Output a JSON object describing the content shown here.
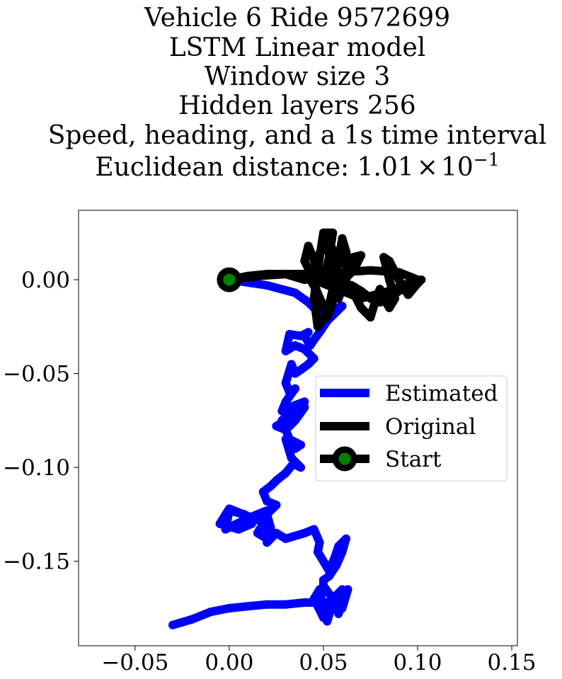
{
  "chart_data": {
    "type": "line",
    "title_lines": [
      "Vehicle 6 Ride 9572699",
      "LSTM Linear model",
      "Window size 3",
      "Hidden layers 256",
      "Speed, heading, and a 1s time interval"
    ],
    "distance_prefix": "Euclidean distance: ",
    "distance_mantissa": "1.01",
    "distance_times": "×",
    "distance_base": "10",
    "distance_exponent": "−1",
    "xlim": [
      -0.08,
      0.153
    ],
    "ylim": [
      -0.195,
      0.037
    ],
    "x_ticks": [
      {
        "value": -0.05,
        "label": "−0.05"
      },
      {
        "value": 0.0,
        "label": "0.00"
      },
      {
        "value": 0.05,
        "label": "0.05"
      },
      {
        "value": 0.1,
        "label": "0.10"
      },
      {
        "value": 0.15,
        "label": "0.15"
      }
    ],
    "y_ticks": [
      {
        "value": 0.0,
        "label": "0.00"
      },
      {
        "value": -0.05,
        "label": "−0.05"
      },
      {
        "value": -0.1,
        "label": "−0.10"
      },
      {
        "value": -0.15,
        "label": "−0.15"
      }
    ],
    "grid": false,
    "legend_position": "center-right",
    "series": [
      {
        "name": "Estimated",
        "color": "#0000ff",
        "x": [
          0.0,
          0.02,
          0.035,
          0.042,
          0.045,
          0.05,
          0.055,
          0.06,
          0.052,
          0.048,
          0.045,
          0.043,
          0.04,
          0.042,
          0.038,
          0.032,
          0.03,
          0.035,
          0.04,
          0.045,
          0.042,
          0.038,
          0.035,
          0.033,
          0.03,
          0.032,
          0.035,
          0.03,
          0.028,
          0.032,
          0.04,
          0.035,
          0.03,
          0.025,
          0.03,
          0.032,
          0.028,
          0.033,
          0.04,
          0.035,
          0.03,
          0.032,
          0.038,
          0.035,
          0.03,
          0.033,
          0.038,
          0.034,
          0.03,
          0.025,
          0.022,
          0.018,
          0.02,
          0.025,
          0.022,
          0.02,
          0.015,
          0.0,
          -0.005,
          0.005,
          0.012,
          0.008,
          0.0,
          -0.002,
          0.008,
          0.015,
          0.02,
          0.018,
          0.015,
          0.02,
          0.022,
          0.02,
          0.018,
          0.022,
          0.02,
          0.025,
          0.03,
          0.04,
          0.045,
          0.048,
          0.047,
          0.05,
          0.053,
          0.056,
          0.058,
          0.062,
          0.06,
          0.057,
          0.053,
          0.05,
          0.05,
          0.055,
          0.06,
          0.062,
          0.058,
          0.053,
          0.05,
          0.045,
          0.048,
          0.05,
          0.053,
          0.052,
          0.055,
          0.058,
          0.06,
          0.063,
          0.062,
          0.058,
          0.056,
          0.055,
          0.058,
          0.05,
          0.04,
          0.03,
          0.02,
          0.01,
          0.0,
          -0.01,
          -0.02,
          -0.03
        ],
        "y": [
          0.0,
          -0.003,
          -0.007,
          -0.012,
          -0.015,
          -0.018,
          -0.016,
          -0.014,
          -0.022,
          -0.028,
          -0.032,
          -0.035,
          -0.03,
          -0.028,
          -0.03,
          -0.029,
          -0.038,
          -0.035,
          -0.037,
          -0.042,
          -0.045,
          -0.048,
          -0.05,
          -0.045,
          -0.055,
          -0.06,
          -0.058,
          -0.065,
          -0.07,
          -0.068,
          -0.065,
          -0.072,
          -0.075,
          -0.078,
          -0.08,
          -0.085,
          -0.075,
          -0.07,
          -0.068,
          -0.075,
          -0.08,
          -0.085,
          -0.088,
          -0.09,
          -0.085,
          -0.095,
          -0.1,
          -0.098,
          -0.103,
          -0.107,
          -0.11,
          -0.113,
          -0.118,
          -0.12,
          -0.123,
          -0.125,
          -0.128,
          -0.122,
          -0.13,
          -0.133,
          -0.13,
          -0.125,
          -0.123,
          -0.133,
          -0.128,
          -0.125,
          -0.123,
          -0.13,
          -0.135,
          -0.138,
          -0.132,
          -0.125,
          -0.13,
          -0.135,
          -0.14,
          -0.135,
          -0.138,
          -0.135,
          -0.133,
          -0.14,
          -0.145,
          -0.15,
          -0.155,
          -0.148,
          -0.142,
          -0.138,
          -0.145,
          -0.152,
          -0.158,
          -0.16,
          -0.163,
          -0.17,
          -0.165,
          -0.168,
          -0.172,
          -0.175,
          -0.18,
          -0.17,
          -0.165,
          -0.175,
          -0.178,
          -0.182,
          -0.172,
          -0.168,
          -0.175,
          -0.165,
          -0.168,
          -0.178,
          -0.172,
          -0.17,
          -0.172,
          -0.172,
          -0.172,
          -0.173,
          -0.173,
          -0.174,
          -0.175,
          -0.177,
          -0.181,
          -0.184
        ]
      },
      {
        "name": "Original",
        "color": "#000000",
        "x": [
          0.0,
          0.015,
          0.03,
          0.045,
          0.06,
          0.075,
          0.09,
          0.1,
          0.085,
          0.07,
          0.055,
          0.045,
          0.04,
          0.042,
          0.046,
          0.05,
          0.053,
          0.055,
          0.05,
          0.048,
          0.045,
          0.047,
          0.052,
          0.055,
          0.058,
          0.06,
          0.062,
          0.064,
          0.06,
          0.058,
          0.055,
          0.052,
          0.05,
          0.054,
          0.058,
          0.062,
          0.066,
          0.07,
          0.066,
          0.061,
          0.057,
          0.054,
          0.052,
          0.049,
          0.046,
          0.043,
          0.045,
          0.048,
          0.051,
          0.054,
          0.056,
          0.06,
          0.065,
          0.07,
          0.075,
          0.078,
          0.08,
          0.082,
          0.085,
          0.088,
          0.085,
          0.082,
          0.085,
          0.09,
          0.095,
          0.1,
          0.102,
          0.095,
          0.09,
          0.085,
          0.08,
          0.075,
          0.07,
          0.065,
          0.06,
          0.055,
          0.05,
          0.045,
          0.04,
          0.03,
          0.02,
          0.01,
          0.0
        ],
        "y": [
          0.0,
          0.002,
          0.003,
          0.003,
          0.004,
          0.005,
          0.004,
          0.0,
          -0.006,
          -0.01,
          -0.004,
          0.0,
          0.01,
          0.018,
          0.008,
          -0.002,
          0.012,
          0.025,
          0.025,
          0.012,
          -0.01,
          -0.025,
          -0.018,
          -0.005,
          0.01,
          0.022,
          0.015,
          0.005,
          -0.005,
          -0.01,
          0.005,
          0.018,
          0.02,
          0.018,
          0.01,
          0.008,
          0.012,
          0.013,
          0.005,
          0.0,
          -0.004,
          -0.015,
          -0.02,
          -0.012,
          -0.005,
          0.0,
          0.006,
          0.014,
          0.022,
          0.018,
          0.008,
          0.0,
          -0.005,
          -0.015,
          -0.02,
          -0.01,
          -0.005,
          -0.01,
          -0.015,
          -0.01,
          0.0,
          0.012,
          0.01,
          0.0,
          -0.008,
          -0.002,
          0.0,
          -0.004,
          -0.006,
          -0.01,
          -0.012,
          -0.01,
          -0.006,
          -0.003,
          -0.002,
          -0.001,
          0.0,
          0.001,
          0.0,
          0.003,
          0.003,
          0.002,
          0.0
        ]
      }
    ],
    "start": {
      "name": "Start",
      "x": 0.0,
      "y": 0.0,
      "edge_color": "#000000",
      "face_color": "#008000"
    }
  }
}
